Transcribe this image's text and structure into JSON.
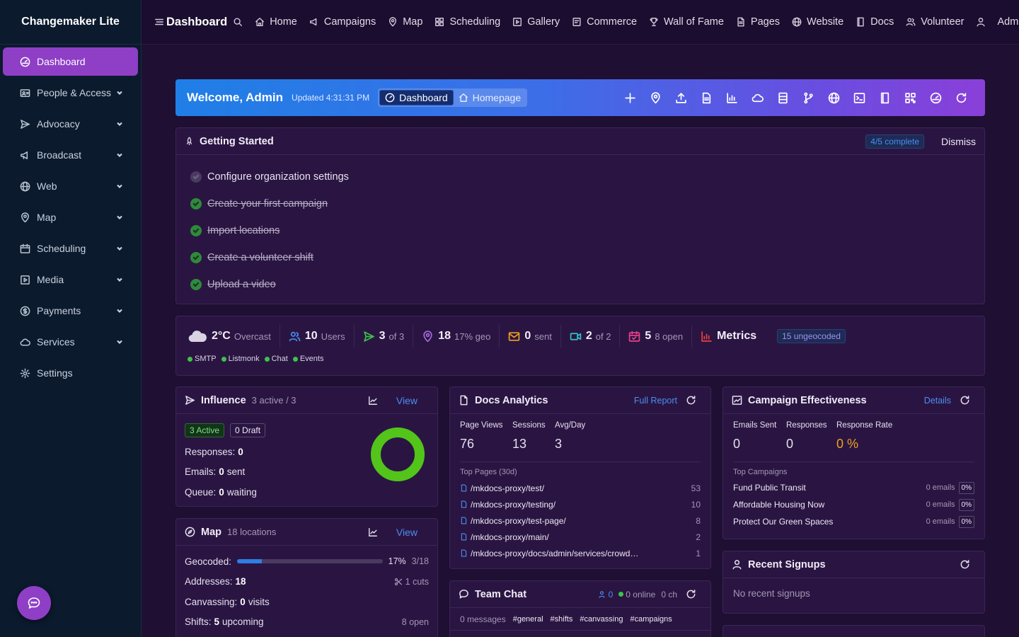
{
  "app": {
    "title": "Changemaker Lite"
  },
  "sidebar": {
    "items": [
      {
        "label": "Dashboard",
        "icon": "gauge-icon"
      },
      {
        "label": "People & Access",
        "icon": "id-card-icon"
      },
      {
        "label": "Advocacy",
        "icon": "send-icon"
      },
      {
        "label": "Broadcast",
        "icon": "megaphone-icon"
      },
      {
        "label": "Web",
        "icon": "globe-icon"
      },
      {
        "label": "Map",
        "icon": "map-pin-icon"
      },
      {
        "label": "Scheduling",
        "icon": "calendar-icon"
      },
      {
        "label": "Media",
        "icon": "media-icon"
      },
      {
        "label": "Payments",
        "icon": "dollar-icon"
      },
      {
        "label": "Services",
        "icon": "cloud-icon"
      },
      {
        "label": "Settings",
        "icon": "gear-icon"
      }
    ]
  },
  "topbar": {
    "title": "Dashboard",
    "items": [
      "Home",
      "Campaigns",
      "Map",
      "Scheduling",
      "Gallery",
      "Commerce",
      "Wall of Fame",
      "Pages",
      "Website",
      "Docs",
      "Volunteer",
      "Admi"
    ]
  },
  "welcome": {
    "title": "Welcome, Admin",
    "updated": "Updated 4:31:31 PM",
    "seg_dashboard": "Dashboard",
    "seg_homepage": "Homepage"
  },
  "getting_started": {
    "title": "Getting Started",
    "progress": "4/5 complete",
    "dismiss": "Dismiss",
    "items": [
      {
        "label": "Configure organization settings",
        "done": false
      },
      {
        "label": "Create your first campaign",
        "done": true
      },
      {
        "label": "Import locations",
        "done": true
      },
      {
        "label": "Create a volunteer shift",
        "done": true
      },
      {
        "label": "Upload a video",
        "done": true
      }
    ]
  },
  "stats": {
    "weather_temp": "2°C",
    "weather_desc": "Overcast",
    "users_num": "10",
    "users_lbl": "Users",
    "campaigns_num": "3",
    "campaigns_lbl": "of 3",
    "locations_num": "18",
    "locations_lbl": "17% geo",
    "sent_num": "0",
    "sent_lbl": "sent",
    "video_num": "2",
    "video_lbl": "of 2",
    "shifts_num": "5",
    "shifts_lbl": "8 open",
    "metrics": "Metrics",
    "ungeocoded": "15 ungeocoded",
    "services": [
      "SMTP",
      "Listmonk",
      "Chat",
      "Events"
    ],
    "colors": {
      "ok": "#3ec24a",
      "accent": "#8e3fc6"
    }
  },
  "influence": {
    "title": "Influence",
    "sub": "3 active / 3",
    "view": "View",
    "active": "3 Active",
    "draft": "0 Draft",
    "responses_lbl": "Responses:",
    "responses": "0",
    "emails_lbl": "Emails:",
    "emails": "0",
    "emails_suffix": "sent",
    "queue_lbl": "Queue:",
    "queue": "0",
    "queue_suffix": "waiting"
  },
  "mapcard": {
    "title": "Map",
    "sub": "18 locations",
    "view": "View",
    "geocoded_lbl": "Geocoded:",
    "geocoded_fraction": 0.17,
    "geocoded_pct": "17%",
    "geocoded_count": "3/18",
    "addresses_lbl": "Addresses:",
    "addresses": "18",
    "cuts": "1 cuts",
    "canvassing_lbl": "Canvassing:",
    "canvassing": "0",
    "canvassing_suffix": "visits",
    "shifts_lbl": "Shifts:",
    "shifts": "5",
    "shifts_suffix": "upcoming",
    "shifts_open": "8 open"
  },
  "docs": {
    "title": "Docs Analytics",
    "full_report": "Full Report",
    "metrics": [
      {
        "label": "Page Views",
        "value": "76"
      },
      {
        "label": "Sessions",
        "value": "13"
      },
      {
        "label": "Avg/Day",
        "value": "3"
      }
    ],
    "top_label": "Top Pages (30d)",
    "pages": [
      {
        "path": "/mkdocs-proxy/test/",
        "count": "53"
      },
      {
        "path": "/mkdocs-proxy/testing/",
        "count": "10"
      },
      {
        "path": "/mkdocs-proxy/test-page/",
        "count": "8"
      },
      {
        "path": "/mkdocs-proxy/main/",
        "count": "2"
      },
      {
        "path": "/mkdocs-proxy/docs/admin/services/crowd…",
        "count": "1"
      }
    ]
  },
  "chat": {
    "title": "Team Chat",
    "users": "0",
    "online": "0 online",
    "channels": "0 ch",
    "messages": "0 messages",
    "tags": [
      "#general",
      "#shifts",
      "#canvassing",
      "#campaigns"
    ]
  },
  "effect": {
    "title": "Campaign Effectiveness",
    "details": "Details",
    "metrics": [
      {
        "label": "Emails Sent",
        "value": "0"
      },
      {
        "label": "Responses",
        "value": "0"
      },
      {
        "label": "Response Rate",
        "value": "0 %"
      }
    ],
    "top_label": "Top Campaigns",
    "campaigns": [
      {
        "name": "Fund Public Transit",
        "emails": "0 emails",
        "pct": "0%"
      },
      {
        "name": "Affordable Housing Now",
        "emails": "0 emails",
        "pct": "0%"
      },
      {
        "name": "Protect Our Green Spaces",
        "emails": "0 emails",
        "pct": "0%"
      }
    ]
  },
  "signups": {
    "title": "Recent Signups",
    "empty": "No recent signups"
  }
}
